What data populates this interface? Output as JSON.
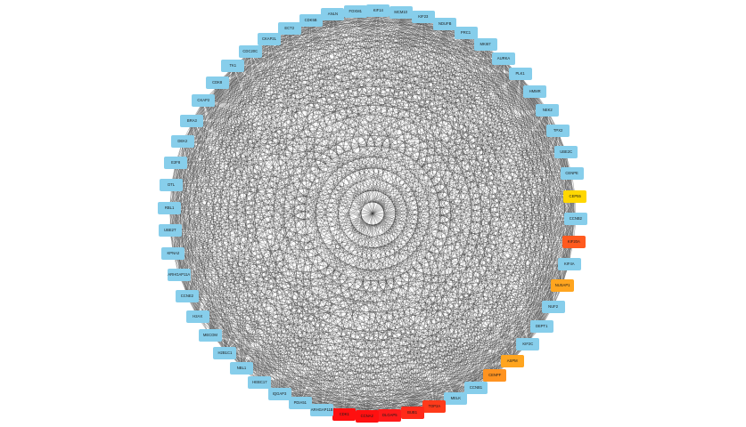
{
  "network": {
    "default_color": "#87CEEB",
    "edge_color": "#333333",
    "nodes": [
      {
        "label": "MCM10",
        "color": "#87CEEB"
      },
      {
        "label": "KIF23",
        "color": "#87CEEB"
      },
      {
        "label": "NDUFB",
        "color": "#87CEEB"
      },
      {
        "label": "PRC1",
        "color": "#87CEEB"
      },
      {
        "label": "MKI67",
        "color": "#87CEEB"
      },
      {
        "label": "AURKA",
        "color": "#87CEEB"
      },
      {
        "label": "PLK1",
        "color": "#87CEEB"
      },
      {
        "label": "HMMR",
        "color": "#87CEEB"
      },
      {
        "label": "NEK2",
        "color": "#87CEEB"
      },
      {
        "label": "TPX2",
        "color": "#87CEEB"
      },
      {
        "label": "UBE2C",
        "color": "#87CEEB"
      },
      {
        "label": "CENPE",
        "color": "#87CEEB"
      },
      {
        "label": "CEP55",
        "color": "#FFD700"
      },
      {
        "label": "CCNB2",
        "color": "#87CEEB"
      },
      {
        "label": "KIF20A",
        "color": "#FF5A1F"
      },
      {
        "label": "KIF4A",
        "color": "#87CEEB"
      },
      {
        "label": "NUSAP1",
        "color": "#FFA51F"
      },
      {
        "label": "NUF2",
        "color": "#87CEEB"
      },
      {
        "label": "DEPT1",
        "color": "#87CEEB"
      },
      {
        "label": "KIF2C",
        "color": "#87CEEB"
      },
      {
        "label": "ASPM",
        "color": "#FFA51F"
      },
      {
        "label": "CENPF",
        "color": "#FF9320"
      },
      {
        "label": "CCNB1",
        "color": "#87CEEB"
      },
      {
        "label": "MELK",
        "color": "#87CEEB"
      },
      {
        "label": "TOP2A",
        "color": "#FF3A1A"
      },
      {
        "label": "BUB1",
        "color": "#FF2A1A"
      },
      {
        "label": "DLGAP5",
        "color": "#FF1A1A"
      },
      {
        "label": "CCNA2",
        "color": "#FF1010"
      },
      {
        "label": "CDK1",
        "color": "#FF1010"
      },
      {
        "label": "ARHGAP11B",
        "color": "#87CEEB"
      },
      {
        "label": "PDIA51",
        "color": "#87CEEB"
      },
      {
        "label": "IQGAP3",
        "color": "#87CEEB"
      },
      {
        "label": "HEBC17",
        "color": "#87CEEB"
      },
      {
        "label": "NBL1",
        "color": "#87CEEB"
      },
      {
        "label": "H2B1C1",
        "color": "#87CEEB"
      },
      {
        "label": "MECOM",
        "color": "#87CEEB"
      },
      {
        "label": "H2AX",
        "color": "#87CEEB"
      },
      {
        "label": "CCNE2",
        "color": "#87CEEB"
      },
      {
        "label": "ARHGAP11A",
        "color": "#87CEEB"
      },
      {
        "label": "KPNA2",
        "color": "#87CEEB"
      },
      {
        "label": "UBE2T",
        "color": "#87CEEB"
      },
      {
        "label": "RBL1",
        "color": "#87CEEB"
      },
      {
        "label": "DTL",
        "color": "#87CEEB"
      },
      {
        "label": "E2F8",
        "color": "#87CEEB"
      },
      {
        "label": "DEK2",
        "color": "#87CEEB"
      },
      {
        "label": "BRA3",
        "color": "#87CEEB"
      },
      {
        "label": "CKAP2",
        "color": "#87CEEB"
      },
      {
        "label": "CDK8",
        "color": "#87CEEB"
      },
      {
        "label": "TK1",
        "color": "#87CEEB"
      },
      {
        "label": "CDC20C",
        "color": "#87CEEB"
      },
      {
        "label": "CKAP2L",
        "color": "#87CEEB"
      },
      {
        "label": "ECT2",
        "color": "#87CEEB"
      },
      {
        "label": "CDK5B",
        "color": "#87CEEB"
      },
      {
        "label": "ANLN",
        "color": "#87CEEB"
      },
      {
        "label": "FOXM1",
        "color": "#87CEEB"
      },
      {
        "label": "KIF14",
        "color": "#87CEEB"
      }
    ]
  }
}
